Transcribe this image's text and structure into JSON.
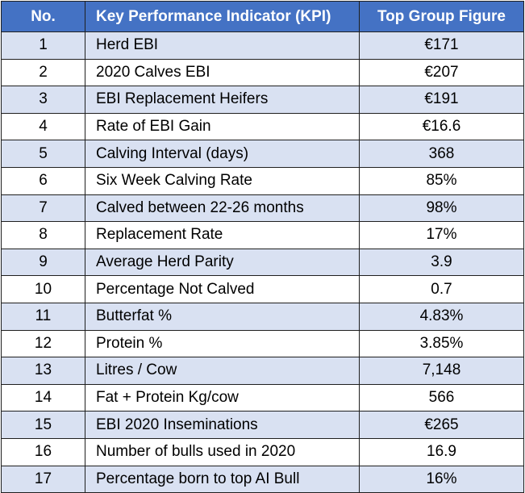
{
  "table": {
    "headers": {
      "no": "No.",
      "kpi": "Key Performance Indicator (KPI)",
      "figure": "Top Group Figure"
    },
    "rows": [
      {
        "no": "1",
        "kpi": "Herd EBI",
        "figure": "€171"
      },
      {
        "no": "2",
        "kpi": "2020 Calves EBI",
        "figure": "€207"
      },
      {
        "no": "3",
        "kpi": "EBI Replacement Heifers",
        "figure": "€191"
      },
      {
        "no": "4",
        "kpi": "Rate of EBI Gain",
        "figure": "€16.6"
      },
      {
        "no": "5",
        "kpi": "Calving Interval (days)",
        "figure": "368"
      },
      {
        "no": "6",
        "kpi": "Six Week Calving Rate",
        "figure": "85%"
      },
      {
        "no": "7",
        "kpi": "Calved between 22-26 months",
        "figure": "98%"
      },
      {
        "no": "8",
        "kpi": "Replacement Rate",
        "figure": "17%"
      },
      {
        "no": "9",
        "kpi": "Average Herd Parity",
        "figure": "3.9"
      },
      {
        "no": "10",
        "kpi": "Percentage Not Calved",
        "figure": "0.7"
      },
      {
        "no": "11",
        "kpi": "Butterfat %",
        "figure": "4.83%"
      },
      {
        "no": "12",
        "kpi": "Protein %",
        "figure": "3.85%"
      },
      {
        "no": "13",
        "kpi": "Litres / Cow",
        "figure": "7,148"
      },
      {
        "no": "14",
        "kpi": "Fat + Protein Kg/cow",
        "figure": "566"
      },
      {
        "no": "15",
        "kpi": "EBI 2020 Inseminations",
        "figure": "€265"
      },
      {
        "no": "16",
        "kpi": "Number of bulls used in 2020",
        "figure": "16.9"
      },
      {
        "no": "17",
        "kpi": "Percentage born to top AI Bull",
        "figure": "16%"
      }
    ]
  },
  "colors": {
    "header_bg": "#4472c4",
    "header_text": "#ffffff",
    "band_shaded": "#d9e1f2",
    "band_plain": "#ffffff",
    "border": "#1f1f1f"
  }
}
